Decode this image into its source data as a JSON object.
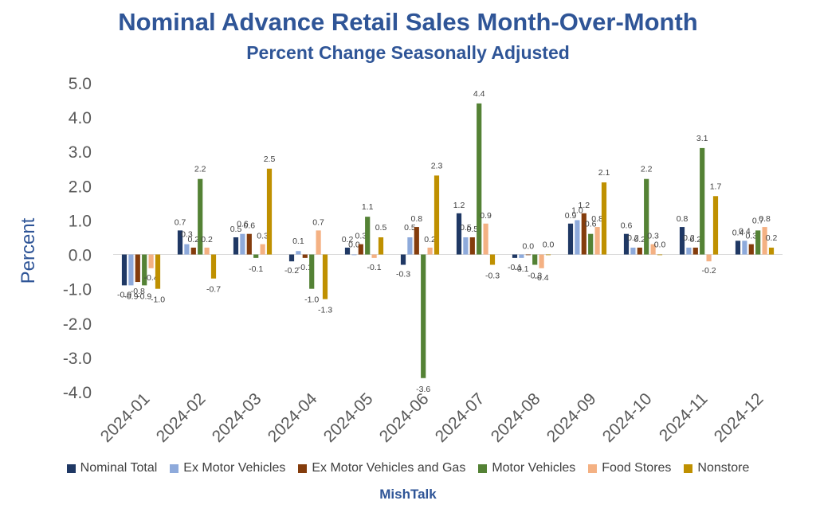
{
  "chart_data": {
    "type": "bar",
    "title": "Nominal Advance Retail Sales Month-Over-Month",
    "subtitle": "Percent Change Seasonally Adjusted",
    "ylabel": "Percent",
    "xlabel": "",
    "ylim": [
      -4.0,
      5.0
    ],
    "yticks": [
      "5.0",
      "4.0",
      "3.0",
      "2.0",
      "1.0",
      "0.0",
      "-1.0",
      "-2.0",
      "-3.0",
      "-4.0"
    ],
    "categories": [
      "2024-01",
      "2024-02",
      "2024-03",
      "2024-04",
      "2024-05",
      "2024-06",
      "2024-07",
      "2024-08",
      "2024-09",
      "2024-10",
      "2024-11",
      "2024-12"
    ],
    "series": [
      {
        "name": "Nominal Total",
        "color": "#1f3864",
        "values": [
          -0.9,
          0.7,
          0.5,
          -0.2,
          0.2,
          -0.3,
          1.2,
          -0.1,
          0.9,
          0.6,
          0.8,
          0.4
        ]
      },
      {
        "name": "Ex Motor Vehicles",
        "color": "#8eaadb",
        "values": [
          -0.9,
          0.3,
          0.6,
          0.1,
          0.0,
          0.5,
          0.5,
          -0.1,
          1.0,
          0.2,
          0.2,
          0.4
        ]
      },
      {
        "name": "Ex Motor Vehicles and Gas",
        "color": "#843c0c",
        "values": [
          -0.8,
          0.2,
          0.6,
          -0.1,
          0.3,
          0.8,
          0.5,
          0.0,
          1.2,
          0.2,
          0.2,
          0.3
        ]
      },
      {
        "name": "Motor Vehicles",
        "color": "#548235",
        "values": [
          -0.9,
          2.2,
          -0.1,
          -1.0,
          1.1,
          -3.6,
          4.4,
          -0.3,
          0.6,
          2.2,
          3.1,
          0.7
        ]
      },
      {
        "name": "Food Stores",
        "color": "#f4b183",
        "values": [
          -0.4,
          0.2,
          0.3,
          0.7,
          -0.1,
          0.2,
          0.9,
          -0.4,
          0.8,
          0.3,
          -0.2,
          0.8
        ]
      },
      {
        "name": "Nonstore",
        "color": "#bf9000",
        "values": [
          -1.0,
          -0.7,
          2.5,
          -1.3,
          0.5,
          2.3,
          -0.3,
          0.0,
          2.1,
          0.0,
          1.7,
          0.2
        ]
      }
    ],
    "data_labels": [
      [
        "-0.9",
        "-0.9",
        "-0.8",
        "-0.9",
        "-0.4",
        "-1.0"
      ],
      [
        "0.7",
        "0.3",
        "0.2",
        "2.2",
        "0.2",
        "-0.7"
      ],
      [
        "0.5",
        "0.6",
        "0.6",
        "-0.1",
        "0.3",
        "2.5"
      ],
      [
        "-0.2",
        "0.1",
        "-0.1",
        "-1.0",
        "0.7",
        "-1.3"
      ],
      [
        "0.2",
        "0.0",
        "0.3",
        "1.1",
        "-0.1",
        "0.5"
      ],
      [
        "-0.3",
        "0.5",
        "0.8",
        "-3.6",
        "0.2",
        "2.3"
      ],
      [
        "1.2",
        "0.5",
        "0.5",
        "4.4",
        "0.9",
        "-0.3"
      ],
      [
        "-0.1",
        "-0.1",
        "0.0",
        "-0.3",
        "-0.4",
        "0.0"
      ],
      [
        "0.9",
        "1.0",
        "1.2",
        "0.6",
        "0.8",
        "2.1"
      ],
      [
        "0.6",
        "0.2",
        "0.2",
        "2.2",
        "0.3",
        "0.0"
      ],
      [
        "0.8",
        "0.2",
        "0.2",
        "3.1",
        "-0.2",
        "1.7"
      ],
      [
        "0.4",
        "0.4",
        "0.3",
        "0.7",
        "0.8",
        "0.2"
      ]
    ],
    "grid": false,
    "legend_position": "bottom"
  },
  "source_label": "MishTalk"
}
